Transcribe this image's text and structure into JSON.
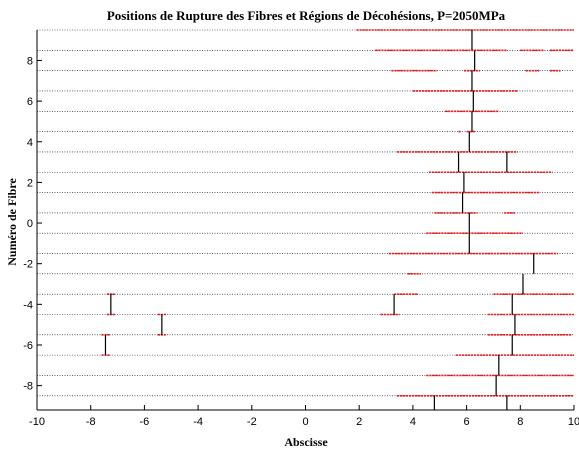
{
  "chart_data": {
    "type": "line",
    "title": "Positions de Rupture des Fibres et Régions de Décohésions, P=2050MPa",
    "xlabel": "Abscisse",
    "ylabel": "Numéro de Fibre",
    "xlim": [
      -10,
      10
    ],
    "ylim": [
      -9.2,
      9.5
    ],
    "xticks": [
      -10,
      -8,
      -6,
      -4,
      -2,
      0,
      2,
      4,
      6,
      8,
      10
    ],
    "xtick_labels": [
      "-10",
      "-8",
      "-6",
      "-4",
      "-2",
      "0",
      "2",
      "4",
      "6",
      "8",
      "10"
    ],
    "yticks": [
      -8,
      -6,
      -4,
      -2,
      0,
      2,
      4,
      6,
      8
    ],
    "ytick_labels": [
      "-8",
      "-6",
      "-4",
      "-2",
      "0",
      "2",
      "4",
      "6",
      "8"
    ],
    "grid": "horizontal",
    "legend": "none",
    "colors": {
      "debonding": "#e8191a",
      "rupture": "#000000",
      "grid": "#000000"
    },
    "series": [
      {
        "type": "debonding_regions",
        "segments": [
          {
            "y": 9.5,
            "x0": 1.9,
            "x1": 10.0
          },
          {
            "y": 8.5,
            "x0": 2.6,
            "x1": 7.5
          },
          {
            "y": 8.5,
            "x0": 8.0,
            "x1": 8.9
          },
          {
            "y": 8.5,
            "x0": 9.1,
            "x1": 10.0
          },
          {
            "y": 7.5,
            "x0": 3.2,
            "x1": 4.9
          },
          {
            "y": 7.5,
            "x0": 5.9,
            "x1": 6.5
          },
          {
            "y": 7.5,
            "x0": 8.2,
            "x1": 8.7
          },
          {
            "y": 7.5,
            "x0": 9.1,
            "x1": 9.5
          },
          {
            "y": 6.5,
            "x0": 4.0,
            "x1": 7.9
          },
          {
            "y": 5.5,
            "x0": 5.2,
            "x1": 7.2
          },
          {
            "y": 4.5,
            "x0": 5.7,
            "x1": 5.8
          },
          {
            "y": 4.5,
            "x0": 6.0,
            "x1": 6.3
          },
          {
            "y": 3.5,
            "x0": 3.4,
            "x1": 7.9
          },
          {
            "y": 2.5,
            "x0": 4.6,
            "x1": 9.2
          },
          {
            "y": 1.5,
            "x0": 4.7,
            "x1": 8.7
          },
          {
            "y": 0.5,
            "x0": 4.8,
            "x1": 6.4
          },
          {
            "y": 0.5,
            "x0": 7.4,
            "x1": 7.8
          },
          {
            "y": -0.5,
            "x0": 4.5,
            "x1": 8.1
          },
          {
            "y": -1.5,
            "x0": 3.1,
            "x1": 9.4
          },
          {
            "y": -2.5,
            "x0": 3.8,
            "x1": 4.3
          },
          {
            "y": -3.5,
            "x0": -7.4,
            "x1": -7.1
          },
          {
            "y": -3.5,
            "x0": 3.3,
            "x1": 4.2
          },
          {
            "y": -3.5,
            "x0": 7.0,
            "x1": 10.0
          },
          {
            "y": -4.5,
            "x0": -7.4,
            "x1": -7.1
          },
          {
            "y": -4.5,
            "x0": -5.5,
            "x1": -5.2
          },
          {
            "y": -4.5,
            "x0": 2.8,
            "x1": 3.5
          },
          {
            "y": -4.5,
            "x0": 6.8,
            "x1": 10.0
          },
          {
            "y": -5.5,
            "x0": -7.6,
            "x1": -7.3
          },
          {
            "y": -5.5,
            "x0": -5.5,
            "x1": -5.2
          },
          {
            "y": -5.5,
            "x0": 6.8,
            "x1": 9.9
          },
          {
            "y": -6.5,
            "x0": -7.6,
            "x1": -7.3
          },
          {
            "y": -6.5,
            "x0": 5.6,
            "x1": 10.0
          },
          {
            "y": -7.5,
            "x0": 4.5,
            "x1": 10.0
          },
          {
            "y": -8.5,
            "x0": 3.4,
            "x1": 10.0
          }
        ]
      },
      {
        "type": "fibre_breaks",
        "segments": [
          {
            "x": 6.2,
            "y0": 8.5,
            "y1": 9.5
          },
          {
            "x": 6.3,
            "y0": 7.5,
            "y1": 8.5
          },
          {
            "x": 6.2,
            "y0": 6.5,
            "y1": 7.5
          },
          {
            "x": 6.25,
            "y0": 5.5,
            "y1": 6.5
          },
          {
            "x": 6.2,
            "y0": 4.5,
            "y1": 5.5
          },
          {
            "x": 6.1,
            "y0": 3.5,
            "y1": 4.5
          },
          {
            "x": 5.7,
            "y0": 2.5,
            "y1": 3.5
          },
          {
            "x": 7.5,
            "y0": 2.5,
            "y1": 3.5
          },
          {
            "x": 5.9,
            "y0": 1.5,
            "y1": 2.5
          },
          {
            "x": 5.85,
            "y0": 0.5,
            "y1": 1.5
          },
          {
            "x": 6.1,
            "y0": -0.5,
            "y1": 0.5
          },
          {
            "x": 6.1,
            "y0": -1.5,
            "y1": -0.5
          },
          {
            "x": 8.5,
            "y0": -2.5,
            "y1": -1.5
          },
          {
            "x": 8.1,
            "y0": -3.5,
            "y1": -2.5
          },
          {
            "x": -7.25,
            "y0": -4.5,
            "y1": -3.5
          },
          {
            "x": 3.3,
            "y0": -4.5,
            "y1": -3.5
          },
          {
            "x": 7.7,
            "y0": -4.5,
            "y1": -3.5
          },
          {
            "x": -5.35,
            "y0": -5.5,
            "y1": -4.5
          },
          {
            "x": 7.8,
            "y0": -5.5,
            "y1": -4.5
          },
          {
            "x": -7.45,
            "y0": -6.5,
            "y1": -5.5
          },
          {
            "x": 7.7,
            "y0": -6.5,
            "y1": -5.5
          },
          {
            "x": 7.2,
            "y0": -7.5,
            "y1": -6.5
          },
          {
            "x": 7.1,
            "y0": -8.5,
            "y1": -7.5
          },
          {
            "x": 4.8,
            "y0": -9.2,
            "y1": -8.5
          },
          {
            "x": 7.5,
            "y0": -9.2,
            "y1": -8.5
          }
        ]
      }
    ]
  }
}
